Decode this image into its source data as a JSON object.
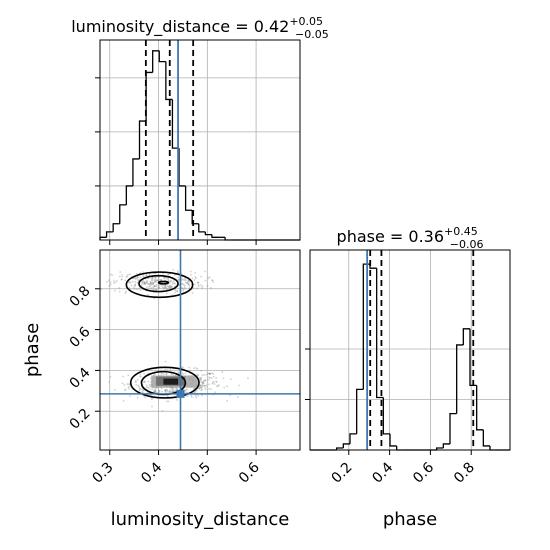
{
  "chart_data": {
    "type": "corner",
    "colors": {
      "truth": "#3b78b0",
      "hist": "#000000",
      "grid": "#b0b0b0",
      "scatter": "#7a7a7a"
    },
    "grid": true,
    "parameters": [
      {
        "name": "luminosity_distance",
        "range": [
          0.28,
          0.69
        ],
        "ticks": [
          0.3,
          0.4,
          0.5,
          0.6
        ],
        "tick_labels": [
          "0.3",
          "0.4",
          "0.5",
          "0.6"
        ],
        "truth": 0.44
      },
      {
        "name": "phase",
        "range": [
          0.01,
          0.99
        ],
        "ticks": [
          0.2,
          0.4,
          0.6,
          0.8
        ],
        "tick_labels": [
          "0.2",
          "0.4",
          "0.6",
          "0.8"
        ],
        "truth": 0.29
      }
    ],
    "panels": [
      {
        "kind": "hist1d",
        "parameter": "luminosity_distance",
        "title": {
          "prefix": "luminosity_distance = ",
          "median": "0.42",
          "plus": "+0.05",
          "minus": "−0.05"
        },
        "quantile_lines": [
          0.374,
          0.423,
          0.471
        ],
        "bin_edges": [
          0.28,
          0.2935,
          0.307,
          0.3205,
          0.334,
          0.3475,
          0.361,
          0.3745,
          0.388,
          0.4015,
          0.415,
          0.4285,
          0.442,
          0.4555,
          0.469,
          0.4825,
          0.496,
          0.5095,
          0.523,
          0.5365,
          0.55,
          0.5635,
          0.577,
          0.5905,
          0.604,
          0.6175,
          0.631,
          0.6445,
          0.658,
          0.6715,
          0.69
        ],
        "counts": [
          1,
          3,
          6,
          13,
          20,
          30,
          44,
          62,
          70,
          66,
          52,
          34,
          20,
          11,
          6,
          3,
          2,
          1,
          1,
          0,
          0,
          0,
          0,
          0,
          0,
          0,
          0,
          0,
          0,
          0
        ],
        "y_gridlines": [
          20,
          40,
          60
        ],
        "ymax": 74
      },
      {
        "kind": "hist1d",
        "parameter": "phase",
        "title": {
          "prefix": "phase = ",
          "median": "0.36",
          "plus": "+0.45",
          "minus": "−0.06"
        },
        "quantile_lines": [
          0.305,
          0.36,
          0.81
        ],
        "bin_edges": [
          0.01,
          0.0427,
          0.0753,
          0.108,
          0.1407,
          0.1733,
          0.206,
          0.2387,
          0.2713,
          0.304,
          0.3367,
          0.3693,
          0.402,
          0.4347,
          0.4673,
          0.5,
          0.5327,
          0.5653,
          0.598,
          0.6307,
          0.6633,
          0.696,
          0.7287,
          0.7613,
          0.794,
          0.8267,
          0.8593,
          0.892,
          0.9247,
          0.9573,
          0.99
        ],
        "counts": [
          0,
          0,
          0,
          0,
          1,
          3,
          8,
          30,
          92,
          90,
          26,
          8,
          2,
          0,
          0,
          0,
          0,
          0,
          0,
          1,
          3,
          18,
          52,
          60,
          32,
          10,
          2,
          0,
          0,
          0
        ],
        "y_gridlines": [
          25,
          50
        ],
        "ymax": 99
      },
      {
        "kind": "hist2d",
        "x_parameter": "luminosity_distance",
        "y_parameter": "phase",
        "truth_point": [
          0.445,
          0.285
        ],
        "modes": [
          {
            "center": [
              0.435,
              0.335
            ],
            "spread": [
              0.047,
              0.033
            ],
            "weight": 0.6
          },
          {
            "center": [
              0.4,
              0.83
            ],
            "spread": [
              0.047,
              0.027
            ],
            "weight": 0.4
          }
        ],
        "contours": [
          {
            "center": [
              0.413,
              0.34
            ],
            "radii": [
              0.07,
              0.075
            ]
          },
          {
            "center": [
              0.41,
              0.338
            ],
            "radii": [
              0.045,
              0.056
            ]
          },
          {
            "center": [
              0.402,
              0.82
            ],
            "radii": [
              0.068,
              0.062
            ]
          },
          {
            "center": [
              0.4,
              0.825
            ],
            "radii": [
              0.04,
              0.039
            ]
          },
          {
            "center": [
              0.41,
              0.83
            ],
            "radii": [
              0.01,
              0.006
            ]
          }
        ],
        "density_cells": [
          {
            "x": [
              0.385,
              0.48
            ],
            "y": [
              0.315,
              0.375
            ],
            "level": 0.35
          },
          {
            "x": [
              0.395,
              0.455
            ],
            "y": [
              0.325,
              0.37
            ],
            "level": 0.6
          },
          {
            "x": [
              0.41,
              0.44
            ],
            "y": [
              0.33,
              0.36
            ],
            "level": 0.95
          }
        ]
      }
    ],
    "xlabels": [
      "luminosity_distance",
      "phase"
    ],
    "ylabel": "phase"
  }
}
